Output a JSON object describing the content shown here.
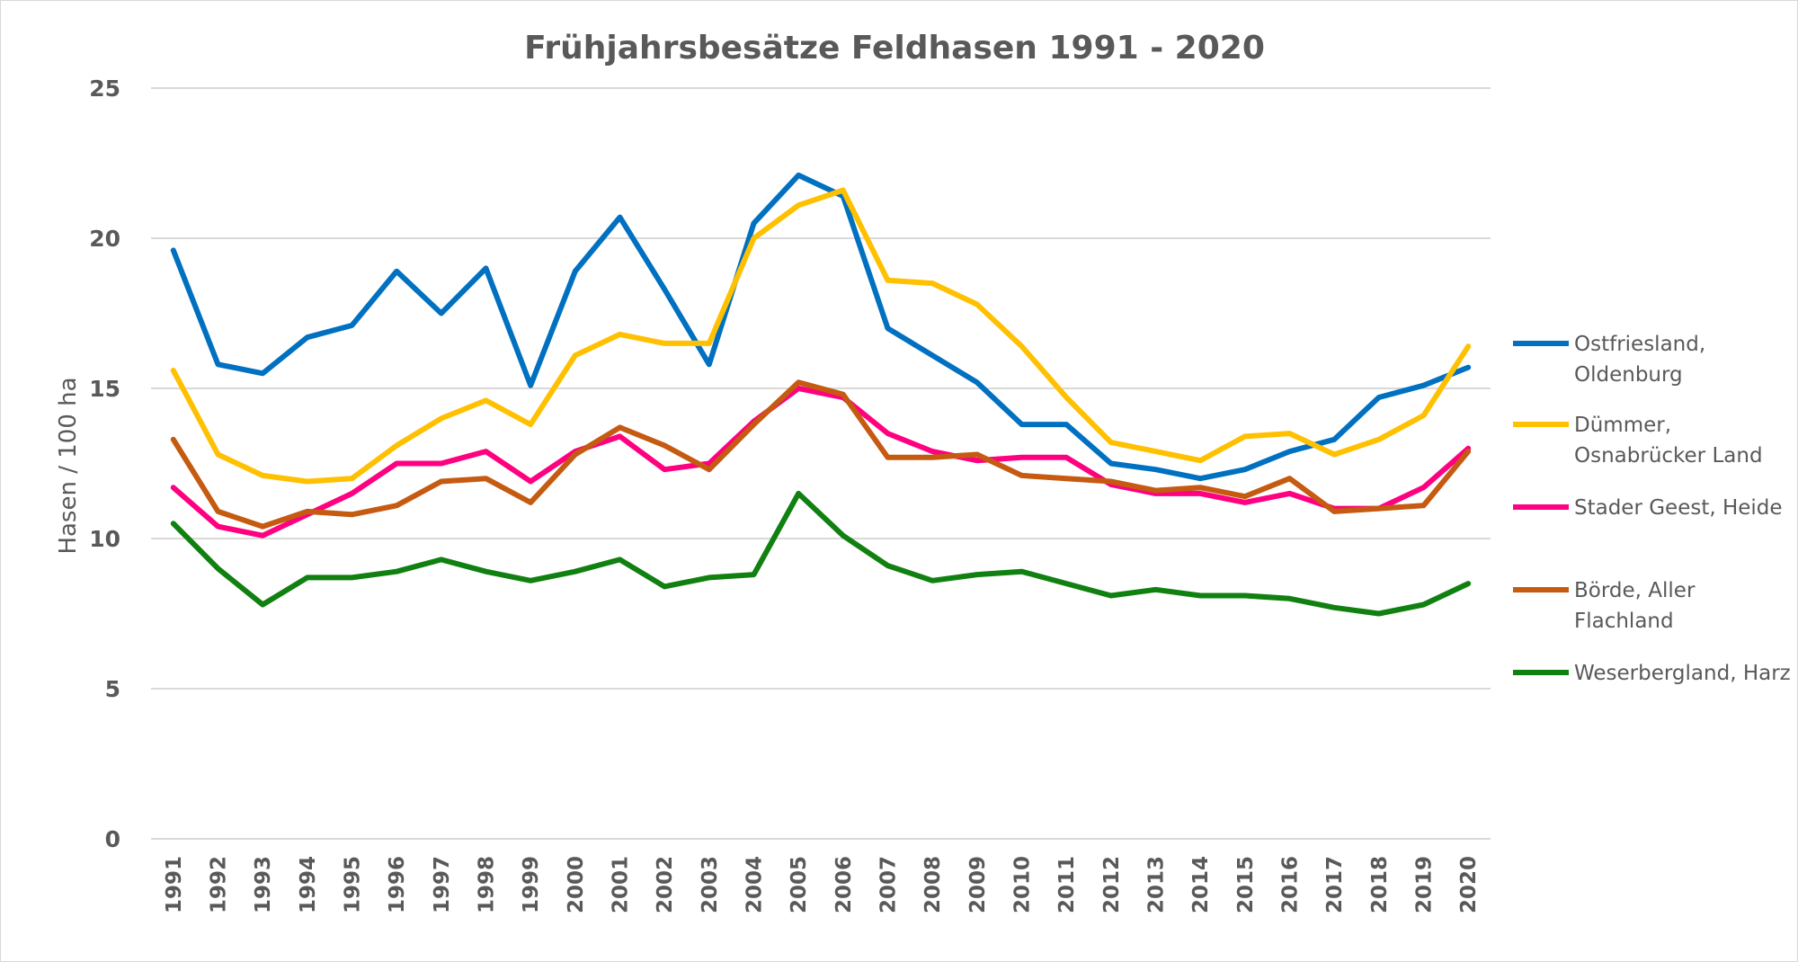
{
  "chart_data": {
    "type": "line",
    "title": "Frühjahrsbesätze Feldhasen 1991 - 2020",
    "xlabel": "",
    "ylabel": "Hasen / 100 ha",
    "ylim": [
      0,
      25
    ],
    "yticks": [
      "0",
      "5",
      "10",
      "15",
      "20",
      "25"
    ],
    "grid": "horizontal",
    "legend_position": "right",
    "categories": [
      "1991",
      "1992",
      "1993",
      "1994",
      "1995",
      "1996",
      "1997",
      "1998",
      "1999",
      "2000",
      "2001",
      "2002",
      "2003",
      "2004",
      "2005",
      "2006",
      "2007",
      "2008",
      "2009",
      "2010",
      "2011",
      "2012",
      "2013",
      "2014",
      "2015",
      "2016",
      "2017",
      "2018",
      "2019",
      "2020"
    ],
    "series": [
      {
        "name": "Ostfriesland, Oldenburg",
        "name_lines": [
          "Ostfriesland,",
          "Oldenburg"
        ],
        "color": "#0070c0",
        "values": [
          19.6,
          15.8,
          15.5,
          16.7,
          17.1,
          18.9,
          17.5,
          19.0,
          15.1,
          18.9,
          20.7,
          18.3,
          15.8,
          20.5,
          22.1,
          21.4,
          17.0,
          16.1,
          15.2,
          13.8,
          13.8,
          12.5,
          12.3,
          12.0,
          12.3,
          12.9,
          13.3,
          14.7,
          15.1,
          15.7
        ]
      },
      {
        "name": "Dümmer, Osnabrücker Land",
        "name_lines": [
          "Dümmer,",
          "Osnabrücker Land"
        ],
        "color": "#ffc000",
        "values": [
          15.6,
          12.8,
          12.1,
          11.9,
          12.0,
          13.1,
          14.0,
          14.6,
          13.8,
          16.1,
          16.8,
          16.5,
          16.5,
          20.0,
          21.1,
          21.6,
          18.6,
          18.5,
          17.8,
          16.4,
          14.7,
          13.2,
          12.9,
          12.6,
          13.4,
          13.5,
          12.8,
          13.3,
          14.1,
          16.4
        ]
      },
      {
        "name": "Stader Geest, Heide",
        "name_lines": [
          "Stader Geest, Heide"
        ],
        "color": "#ff0080",
        "values": [
          11.7,
          10.4,
          10.1,
          10.8,
          11.5,
          12.5,
          12.5,
          12.9,
          11.9,
          12.9,
          13.4,
          12.3,
          12.5,
          13.9,
          15.0,
          14.7,
          13.5,
          12.9,
          12.6,
          12.7,
          12.7,
          11.8,
          11.5,
          11.5,
          11.2,
          11.5,
          11.0,
          11.0,
          11.7,
          13.0
        ]
      },
      {
        "name": "Börde, Aller Flachland",
        "name_lines": [
          "Börde, Aller",
          "Flachland"
        ],
        "color": "#c55a11",
        "values": [
          13.3,
          10.9,
          10.4,
          10.9,
          10.8,
          11.1,
          11.9,
          12.0,
          11.2,
          12.8,
          13.7,
          13.1,
          12.3,
          13.8,
          15.2,
          14.8,
          12.7,
          12.7,
          12.8,
          12.1,
          12.0,
          11.9,
          11.6,
          11.7,
          11.4,
          12.0,
          10.9,
          11.0,
          11.1,
          12.9
        ]
      },
      {
        "name": "Weserbergland, Harz",
        "name_lines": [
          "Weserbergland, Harz"
        ],
        "color": "#108010",
        "values": [
          10.5,
          9.0,
          7.8,
          8.7,
          8.7,
          8.9,
          9.3,
          8.9,
          8.6,
          8.9,
          9.3,
          8.4,
          8.7,
          8.8,
          11.5,
          10.1,
          9.1,
          8.6,
          8.8,
          8.9,
          8.5,
          8.1,
          8.3,
          8.1,
          8.1,
          8.0,
          7.7,
          7.5,
          7.8,
          8.5
        ]
      }
    ],
    "gridline_color": "#d9d9d9"
  }
}
